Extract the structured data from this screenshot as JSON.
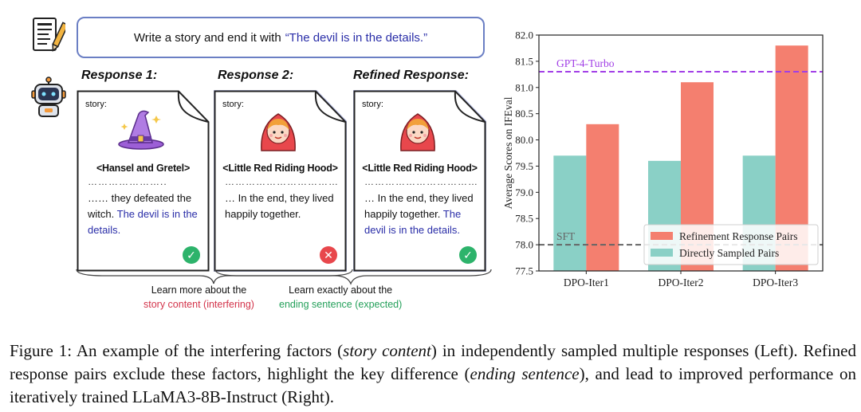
{
  "prompt": {
    "text": "Write a story and end it with",
    "quote": "“The devil is in the details.”"
  },
  "responses": [
    {
      "heading": "Response 1:",
      "story_label": "story:",
      "title": "<Hansel and Gretel>",
      "dots": "…………………..",
      "body_plain": "…… they defeated the witch.",
      "body_highlight": "The devil is in the details.",
      "status": "correct",
      "status_glyph": "✓"
    },
    {
      "heading": "Response 2:",
      "story_label": "story:",
      "title": "<Little Red Riding Hood>",
      "dots": "……………………………",
      "body_plain": "… In the end, they lived happily together.",
      "body_highlight": "",
      "status": "wrong",
      "status_glyph": "✕"
    },
    {
      "heading": "Refined Response:",
      "story_label": "story:",
      "title": "<Little Red Riding Hood>",
      "dots": "……………………………",
      "body_plain": "… In the end, they lived happily together.",
      "body_highlight": "The devil is in the details.",
      "status": "correct",
      "status_glyph": "✓"
    }
  ],
  "annotations": {
    "left_line1": "Learn more about the",
    "left_line2": "story content (interfering)",
    "right_line1": "Learn exactly about the",
    "right_line2": "ending sentence (expected)"
  },
  "colors": {
    "refinement": "#f47f6f",
    "direct": "#8ad0c6",
    "gpt4_line": "#a13ee6",
    "sft_line": "#666666",
    "quote_blue": "#2a2ea8",
    "ok_green": "#2db36b",
    "bad_red": "#e8474c"
  },
  "chart_data": {
    "type": "bar",
    "categories": [
      "DPO-Iter1",
      "DPO-Iter2",
      "DPO-Iter3"
    ],
    "series": [
      {
        "name": "Directly Sampled Pairs",
        "values": [
          79.7,
          79.6,
          79.7
        ]
      },
      {
        "name": "Refinement Response Pairs",
        "values": [
          80.3,
          81.1,
          81.8
        ]
      }
    ],
    "reference_lines": [
      {
        "name": "GPT-4-Turbo",
        "value": 81.3,
        "style": "dashed"
      },
      {
        "name": "SFT",
        "value": 78.0,
        "style": "dashed"
      }
    ],
    "ylabel": "Average Scores on IFEval",
    "xlabel": "",
    "ylim": [
      77.5,
      82.0
    ],
    "yticks": [
      "77.5",
      "78.0",
      "78.5",
      "79.0",
      "79.5",
      "80.0",
      "80.5",
      "81.0",
      "81.5",
      "82.0"
    ],
    "legend": [
      "Refinement Response Pairs",
      "Directly Sampled Pairs"
    ],
    "legend_position": "lower-right"
  },
  "caption": {
    "lead": "Figure 1:  An example of the interfering factors (",
    "em1": "story content",
    "mid1": ") in independently sampled multiple responses (Left). Refined response pairs exclude these factors, highlight the key difference (",
    "em2": "ending sentence",
    "tail": "), and lead to improved performance on iteratively trained LLaMA3-8B-Instruct (Right)."
  }
}
